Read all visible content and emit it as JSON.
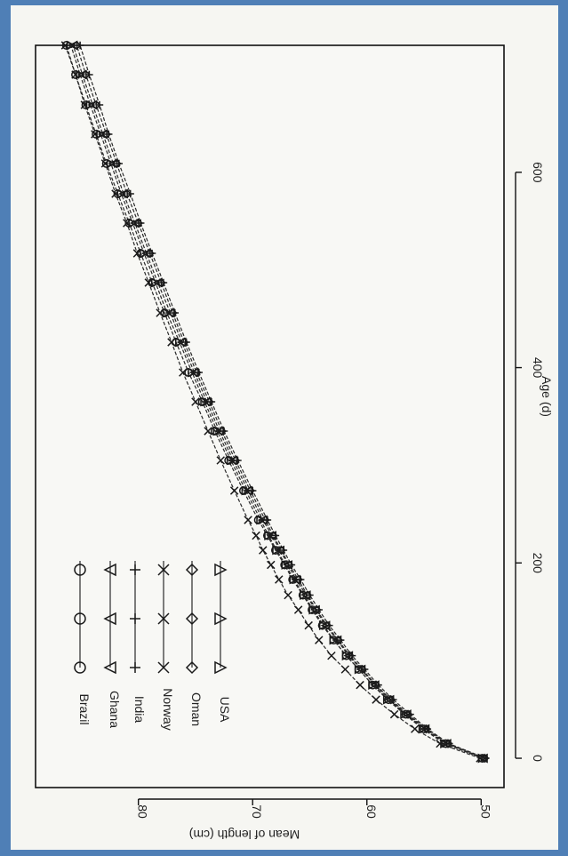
{
  "chart_data": {
    "type": "line",
    "title": "",
    "xlabel": "Age (d)",
    "ylabel": "Mean of length (cm)",
    "xlim": [
      -30,
      730
    ],
    "ylim": [
      48,
      89
    ],
    "xticks": [
      0,
      200,
      400,
      600
    ],
    "yticks": [
      50,
      60,
      70,
      80
    ],
    "grid": false,
    "legend": "top-left",
    "orientation": "rotated-90-clockwise",
    "x": [
      0,
      15,
      30,
      45,
      60,
      75,
      91,
      105,
      121,
      136,
      152,
      167,
      183,
      198,
      213,
      228,
      244,
      274,
      305,
      335,
      365,
      395,
      426,
      456,
      487,
      517,
      548,
      578,
      609,
      639,
      669,
      700,
      730
    ],
    "series": [
      {
        "name": "Brazil",
        "marker": "circle",
        "values": [
          49.9,
          53.1,
          55.0,
          56.6,
          58.1,
          59.5,
          60.7,
          61.8,
          62.9,
          63.9,
          64.8,
          65.6,
          66.5,
          67.2,
          68.0,
          68.7,
          69.5,
          70.8,
          72.1,
          73.3,
          74.4,
          75.6,
          76.7,
          77.7,
          78.8,
          79.8,
          80.8,
          81.8,
          82.8,
          83.7,
          84.6,
          85.5,
          86.3
        ]
      },
      {
        "name": "Ghana",
        "marker": "triangle-up",
        "values": [
          49.8,
          53.0,
          54.9,
          56.5,
          58.0,
          59.3,
          60.5,
          61.6,
          62.6,
          63.6,
          64.5,
          65.3,
          66.2,
          66.9,
          67.6,
          68.3,
          69.1,
          70.4,
          71.7,
          72.9,
          74.0,
          75.1,
          76.2,
          77.2,
          78.3,
          79.3,
          80.3,
          81.3,
          82.2,
          83.1,
          84.0,
          84.9,
          85.7
        ]
      },
      {
        "name": "India",
        "marker": "plus",
        "values": [
          49.6,
          52.8,
          54.7,
          56.2,
          57.7,
          59.0,
          60.2,
          61.3,
          62.3,
          63.3,
          64.2,
          65.0,
          65.8,
          66.6,
          67.3,
          68.0,
          68.7,
          70.0,
          71.3,
          72.5,
          73.6,
          74.7,
          75.8,
          76.8,
          77.8,
          78.8,
          79.8,
          80.7,
          81.7,
          82.6,
          83.4,
          84.3,
          85.1
        ]
      },
      {
        "name": "Norway",
        "marker": "cross",
        "values": [
          50.1,
          53.6,
          55.8,
          57.6,
          59.2,
          60.6,
          61.9,
          63.1,
          64.2,
          65.1,
          66.0,
          66.9,
          67.7,
          68.4,
          69.1,
          69.7,
          70.4,
          71.6,
          72.8,
          73.9,
          75.0,
          76.1,
          77.1,
          78.1,
          79.1,
          80.1,
          81.0,
          82.0,
          82.9,
          83.8,
          84.7,
          85.5,
          86.4
        ]
      },
      {
        "name": "Oman",
        "marker": "diamond",
        "values": [
          49.7,
          52.9,
          54.8,
          56.4,
          57.9,
          59.2,
          60.4,
          61.5,
          62.5,
          63.5,
          64.4,
          65.2,
          66.0,
          66.8,
          67.5,
          68.2,
          68.9,
          70.2,
          71.5,
          72.7,
          73.8,
          74.9,
          76.0,
          77.0,
          78.0,
          79.0,
          80.0,
          81.0,
          81.9,
          82.8,
          83.7,
          84.6,
          85.4
        ]
      },
      {
        "name": "USA",
        "marker": "triangle-down",
        "values": [
          49.9,
          53.2,
          55.1,
          56.7,
          58.2,
          59.5,
          60.7,
          61.8,
          62.9,
          63.8,
          64.7,
          65.5,
          66.4,
          67.1,
          67.9,
          68.6,
          69.3,
          70.6,
          71.9,
          73.1,
          74.2,
          75.3,
          76.4,
          77.5,
          78.5,
          79.5,
          80.5,
          81.5,
          82.4,
          83.3,
          84.2,
          85.1,
          85.9
        ]
      }
    ]
  }
}
